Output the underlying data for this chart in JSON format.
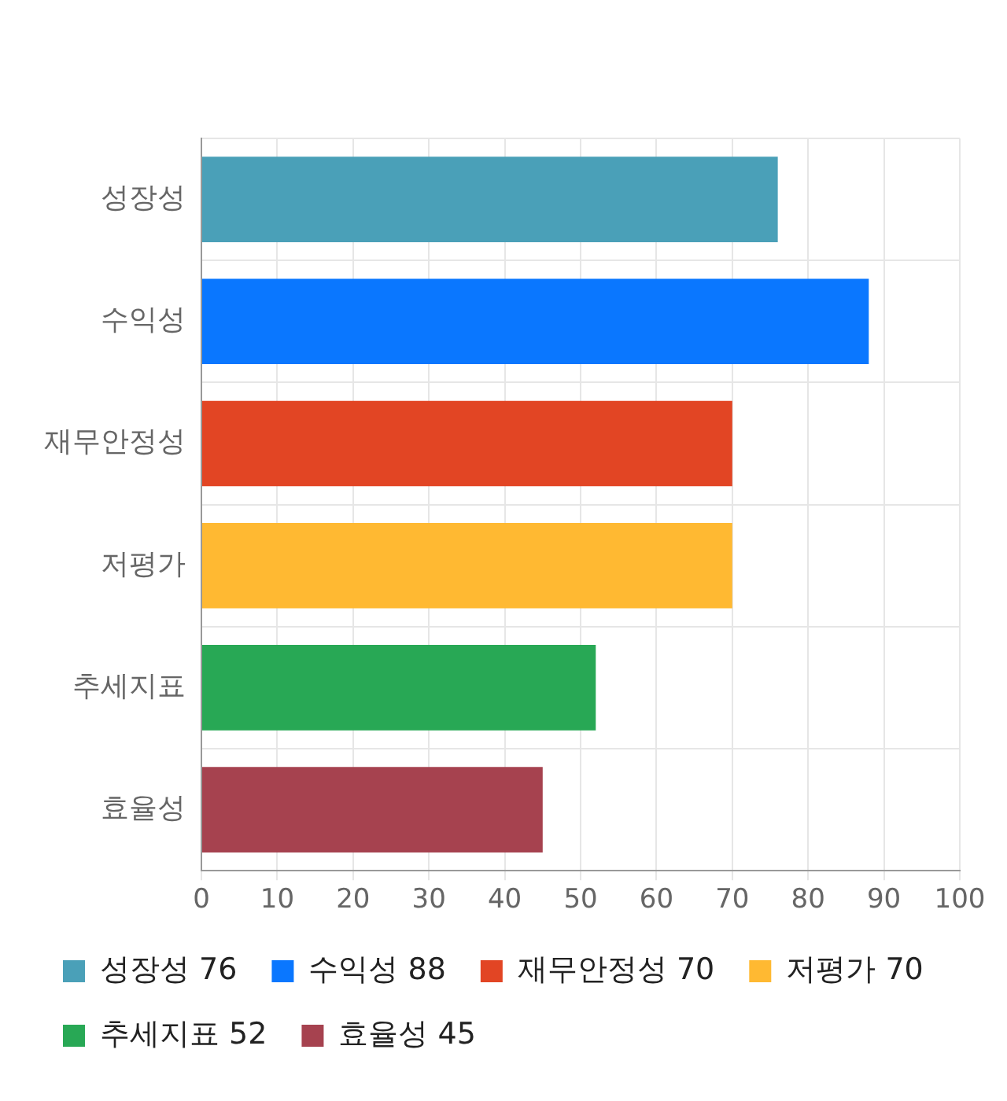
{
  "chart_data": {
    "type": "bar",
    "orientation": "horizontal",
    "stacked": true,
    "categories": [
      "성장성",
      "수익성",
      "재무안정성",
      "저평가",
      "추세지표",
      "효율성"
    ],
    "series": [
      {
        "name": "성장성 76",
        "color": "#4aa0b8",
        "values": [
          76,
          null,
          null,
          null,
          null,
          null
        ]
      },
      {
        "name": "수익성 88",
        "color": "#0a77ff",
        "values": [
          null,
          88,
          null,
          null,
          null,
          null
        ]
      },
      {
        "name": "재무안정성 70",
        "color": "#e24524",
        "values": [
          null,
          null,
          70,
          null,
          null,
          null
        ]
      },
      {
        "name": "저평가 70",
        "color": "#ffb932",
        "values": [
          null,
          null,
          null,
          70,
          null,
          null
        ]
      },
      {
        "name": "추세지표 52",
        "color": "#28a855",
        "values": [
          null,
          null,
          null,
          null,
          52,
          null
        ]
      },
      {
        "name": "효율성 45",
        "color": "#a6424f",
        "values": [
          null,
          null,
          null,
          null,
          null,
          45
        ]
      }
    ],
    "xlim": [
      0,
      100
    ],
    "xticks": [
      0,
      10,
      20,
      30,
      40,
      50,
      60,
      70,
      80,
      90,
      100
    ],
    "grid": true,
    "legend": "bottom"
  }
}
